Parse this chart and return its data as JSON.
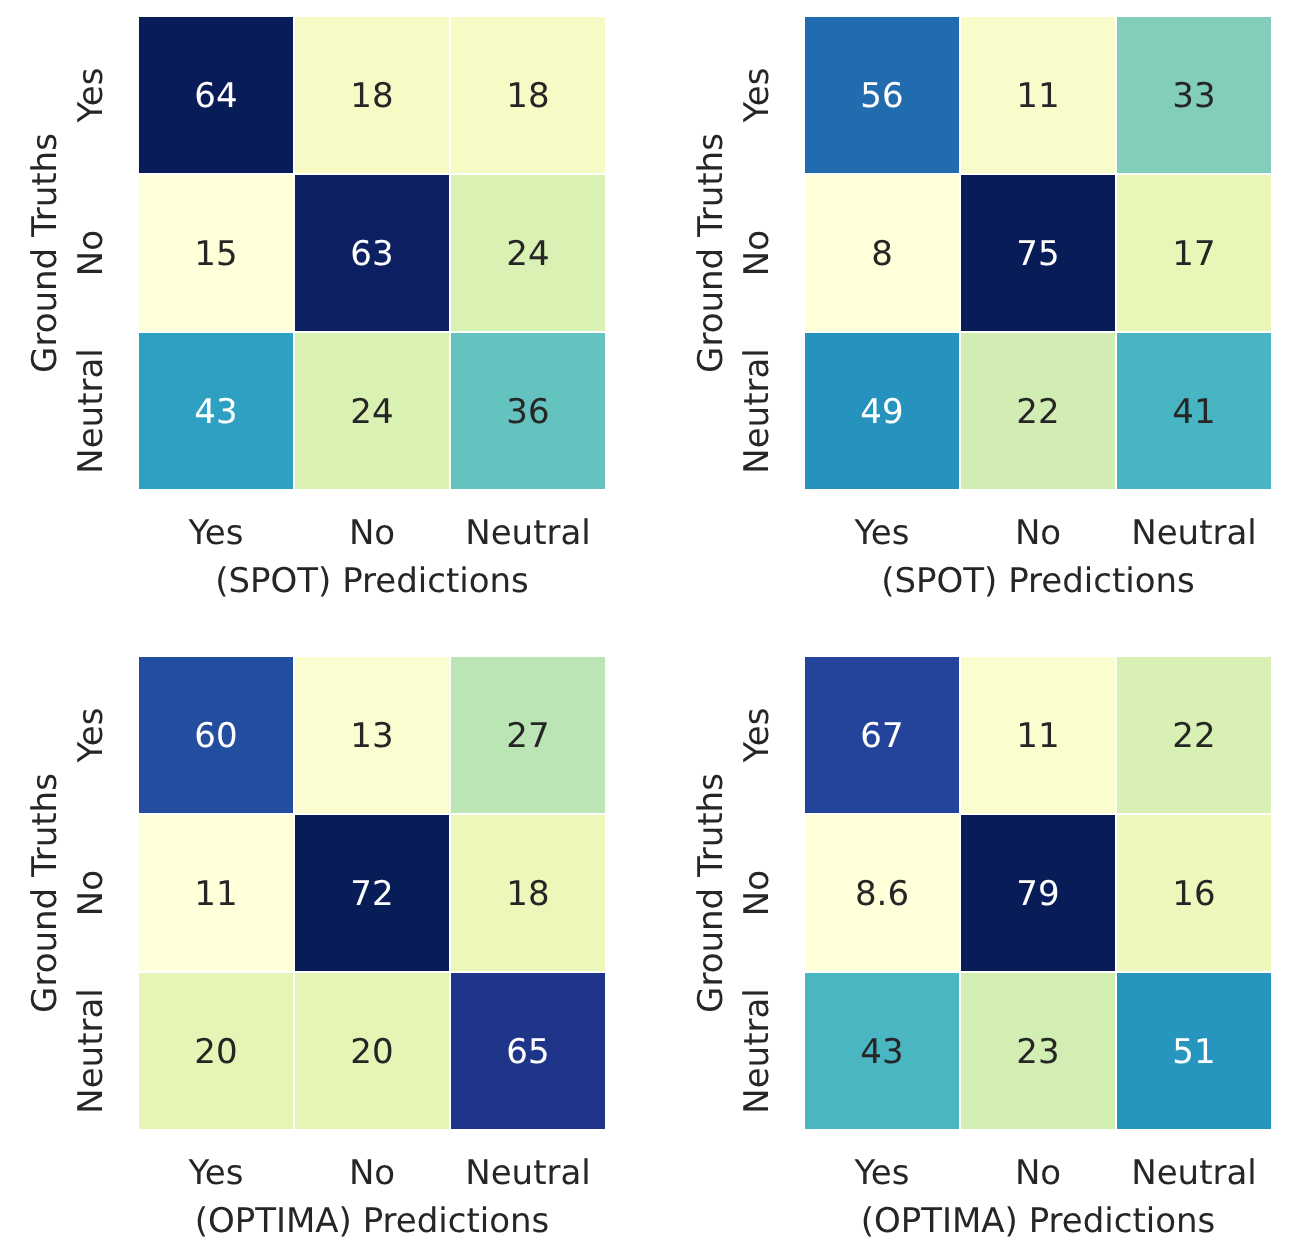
{
  "chart_data": [
    {
      "type": "heatmap",
      "xlabel": "(SPOT) Predictions",
      "ylabel": "Ground Truths",
      "categories": [
        "Yes",
        "No",
        "Neutral"
      ],
      "y_categories": [
        "Yes",
        "No",
        "Neutral"
      ],
      "data_labels": true,
      "cells": [
        [
          64,
          18,
          18
        ],
        [
          15,
          63,
          24
        ],
        [
          43,
          24,
          36
        ]
      ]
    },
    {
      "type": "heatmap",
      "xlabel": "(SPOT) Predictions",
      "ylabel": "Ground Truths",
      "categories": [
        "Yes",
        "No",
        "Neutral"
      ],
      "y_categories": [
        "Yes",
        "No",
        "Neutral"
      ],
      "data_labels": true,
      "cells": [
        [
          56,
          11,
          33
        ],
        [
          8,
          75,
          17
        ],
        [
          49,
          22,
          41
        ]
      ]
    },
    {
      "type": "heatmap",
      "xlabel": "(OPTIMA) Predictions",
      "ylabel": "Ground Truths",
      "categories": [
        "Yes",
        "No",
        "Neutral"
      ],
      "y_categories": [
        "Yes",
        "No",
        "Neutral"
      ],
      "data_labels": true,
      "cells": [
        [
          60,
          13,
          27
        ],
        [
          11,
          72,
          18
        ],
        [
          20,
          20,
          65
        ]
      ]
    },
    {
      "type": "heatmap",
      "xlabel": "(OPTIMA) Predictions",
      "ylabel": "Ground Truths",
      "categories": [
        "Yes",
        "No",
        "Neutral"
      ],
      "y_categories": [
        "Yes",
        "No",
        "Neutral"
      ],
      "data_labels": true,
      "cells": [
        [
          67,
          11,
          22
        ],
        [
          8.6,
          79,
          16
        ],
        [
          43,
          23,
          51
        ]
      ]
    }
  ]
}
